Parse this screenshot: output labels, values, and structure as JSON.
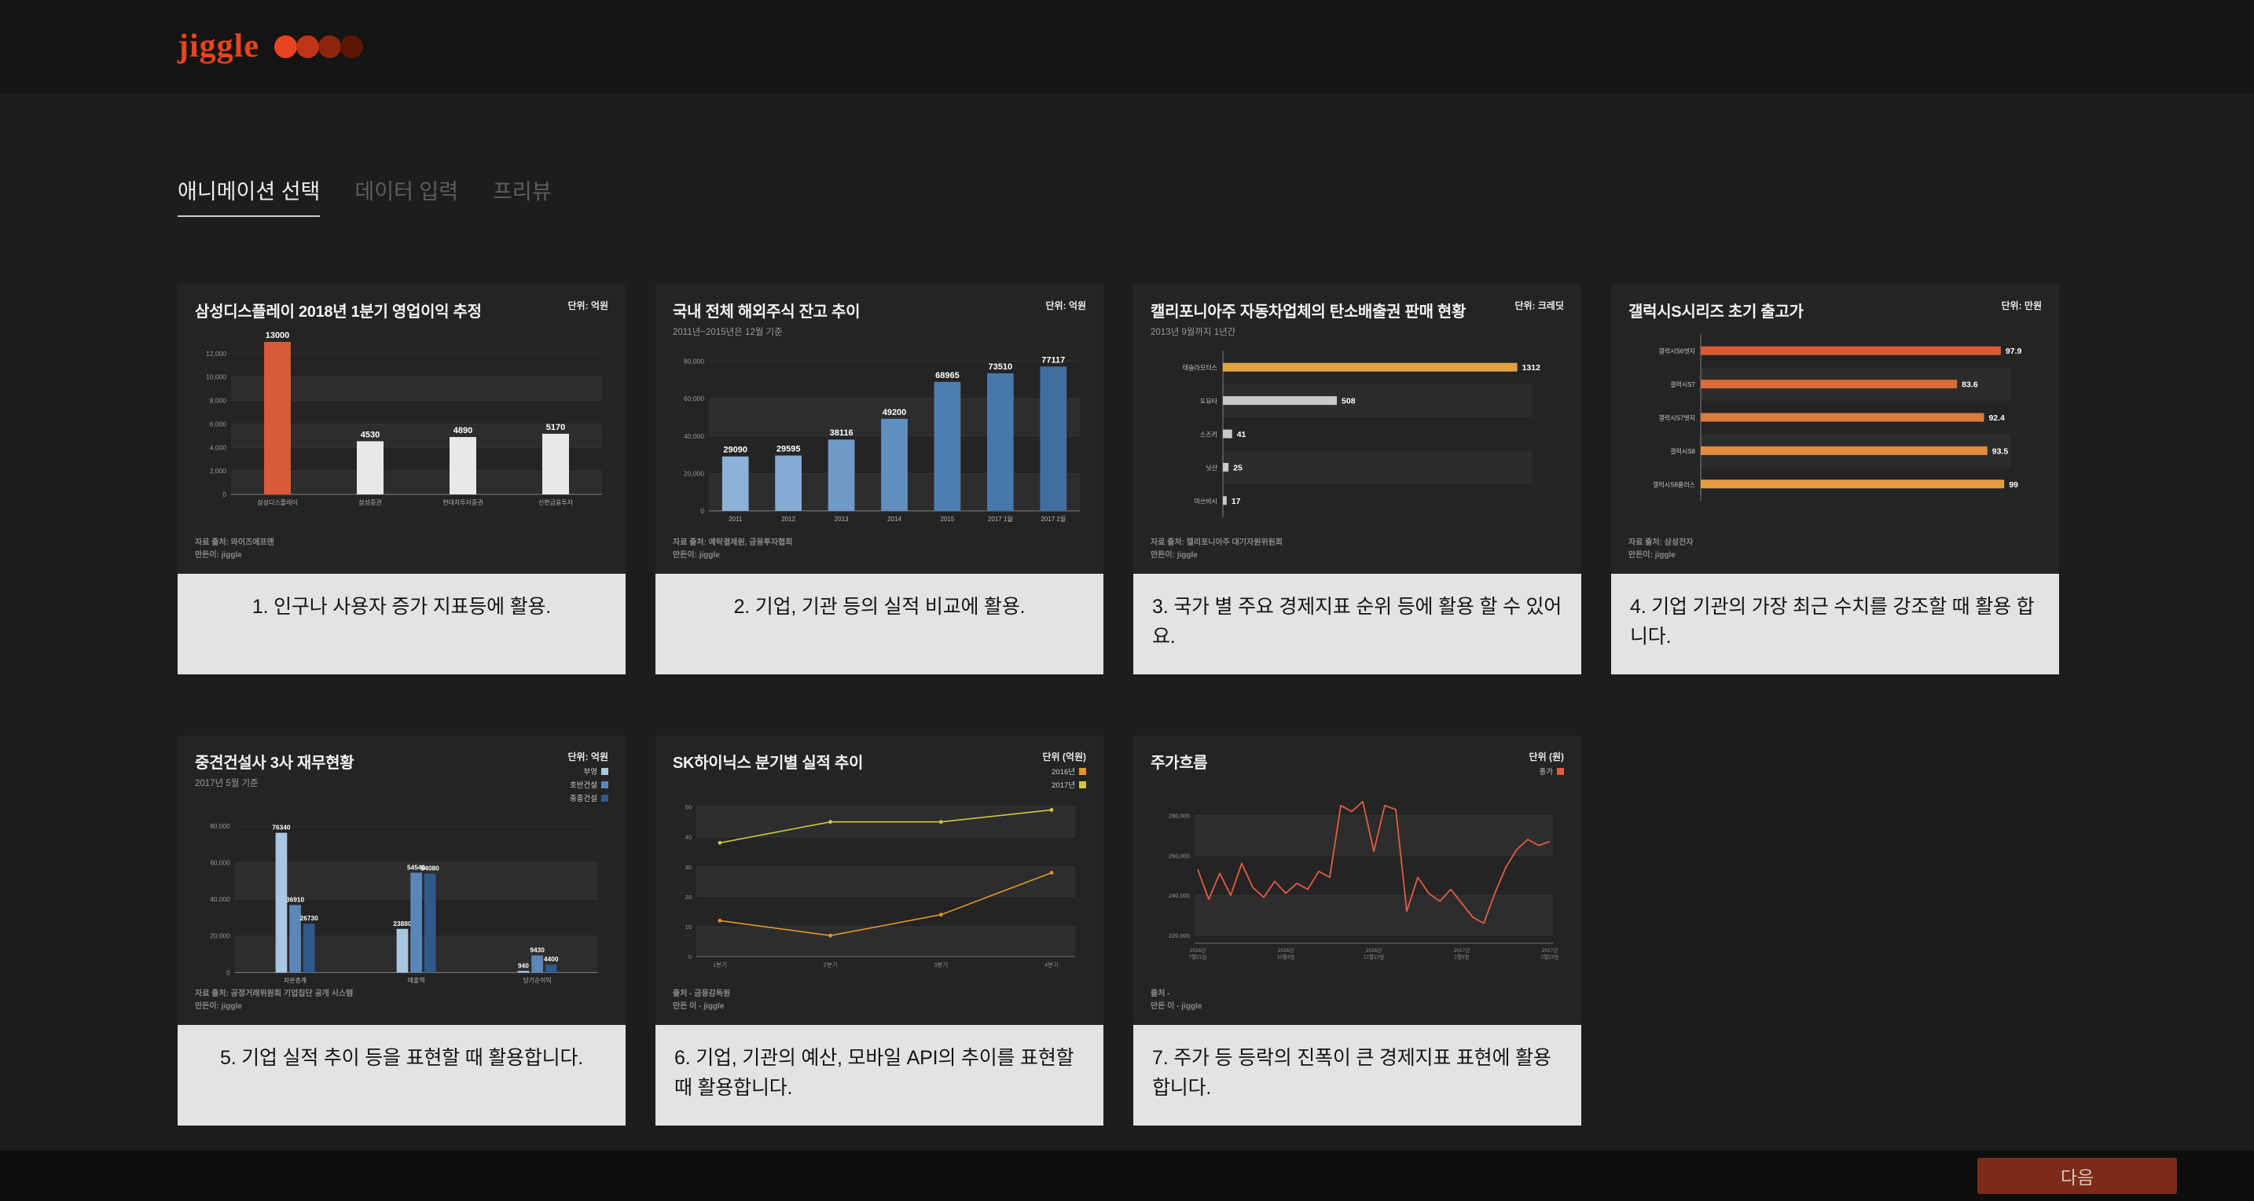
{
  "header": {
    "logo_text": "jiggle",
    "dot_colors": [
      "#e8441f",
      "#c03515",
      "#8e250d",
      "#5d1606"
    ]
  },
  "tabs": [
    {
      "label": "애니메이션 선택"
    },
    {
      "label": "데이터 입력"
    },
    {
      "label": "프리뷰"
    }
  ],
  "footer": {
    "next_label": "다음"
  },
  "cards": [
    {
      "title": "삼성디스플레이 2018년 1분기 영업이익 추정",
      "subtitle": "",
      "unit": "단위: 억원",
      "source": "자료 출처: 와이즈에프앤",
      "maker": "만든이: jiggle",
      "caption": "1. 인구나 사용자 증가 지표등에 활용.",
      "chart_data": {
        "type": "bar",
        "categories": [
          "삼성디스플레이",
          "삼성증권",
          "현대차투자증권",
          "신한금융투자"
        ],
        "values": [
          13000,
          4530,
          4890,
          5170
        ],
        "colors": [
          "#d85a36",
          "#e8e8e8",
          "#e8e8e8",
          "#e8e8e8"
        ],
        "yticks": [
          0,
          2000,
          4000,
          6000,
          8000,
          10000,
          12000
        ],
        "ymax": 13400
      }
    },
    {
      "title": "국내 전체 해외주식 잔고 추이",
      "subtitle": "2011년~2015년은 12월 기준",
      "unit": "단위: 억원",
      "source": "자료 출처: 예탁결제원, 금융투자협회",
      "maker": "만든이: jiggle",
      "caption": "2. 기업, 기관 등의 실적 비교에 활용.",
      "chart_data": {
        "type": "bar",
        "categories": [
          "2011",
          "2012",
          "2013",
          "2014",
          "2015",
          "2017 1월",
          "2017 2월"
        ],
        "values": [
          29090,
          29595,
          38116,
          49200,
          68965,
          73510,
          77117
        ],
        "colors": [
          "#8cb2d8",
          "#85abd2",
          "#6f9ac8",
          "#6190bf",
          "#4d7fb2",
          "#4678ab",
          "#406f9f"
        ],
        "yticks": [
          0,
          20000,
          40000,
          60000,
          80000
        ],
        "ymax": 84000
      }
    },
    {
      "title": "캘리포니아주 자동차업체의 탄소배출권 판매 현황",
      "subtitle": "2013년 9월까지 1년간",
      "unit": "단위: 크레딧",
      "source": "자료 출처: 캘리포니아주 대기자원위원회",
      "maker": "만든이: jiggle",
      "caption": "3. 국가 별 주요 경제지표 순위 등에 활용 할 수 있어요.",
      "chart_data": {
        "type": "hbar",
        "categories": [
          "테슬라모터스",
          "도요타",
          "스즈키",
          "닛산",
          "미쓰비시"
        ],
        "values": [
          1312,
          508,
          41,
          25,
          17
        ],
        "colors": [
          "#e2a23e",
          "#c9c9c9",
          "#c9c9c9",
          "#c9c9c9",
          "#c9c9c9"
        ],
        "xmax": 1380
      }
    },
    {
      "title": "갤럭시S시리즈 초기 출고가",
      "subtitle": "",
      "unit": "단위: 만원",
      "source": "자료 출처: 삼성전자",
      "maker": "만든이: jiggle",
      "caption": "4. 기업 기관의 가장 최근 수치를 강조할 때 활용 합니다.",
      "chart_data": {
        "type": "hbar",
        "categories": [
          "갤럭시S6엣지",
          "갤럭시S7",
          "갤럭시S7엣지",
          "갤럭시S8",
          "갤럭시S8플러스"
        ],
        "values": [
          97.9,
          83.6,
          92.4,
          93.5,
          99
        ],
        "colors": [
          "#d95b36",
          "#db6b38",
          "#de7b3a",
          "#e28c3c",
          "#e69d3f"
        ],
        "xmax": 101
      }
    },
    {
      "title": "중견건설사 3사 재무현황",
      "subtitle": "2017년 5월 기준",
      "unit": "단위: 억원",
      "source": "자료 출처: 공정거래위원회 기업집단 공개 시스템",
      "maker": "만든이: jiggle",
      "caption": "5. 기업 실적 추이 등을 표현할 때 활용합니다.",
      "chart_data": {
        "type": "grouped-bar",
        "categories": [
          "자본총계",
          "매출액",
          "당기순이익"
        ],
        "series": [
          {
            "name": "부영",
            "color": "#a9c6e2",
            "values": [
              76340,
              23880,
              940
            ]
          },
          {
            "name": "호반건설",
            "color": "#5b87b8",
            "values": [
              36910,
              54540,
              9430
            ]
          },
          {
            "name": "중흥건설",
            "color": "#31598a",
            "values": [
              26730,
              54080,
              4400
            ]
          }
        ],
        "yticks": [
          0,
          20000,
          40000,
          60000,
          80000
        ],
        "ymax": 84000
      }
    },
    {
      "title": "SK하이닉스 분기별 실적 추이",
      "subtitle": "",
      "unit": "단위 (억원)",
      "source": "출처 - 금융감독원",
      "maker": "만든 이 - jiggle",
      "caption": "6. 기업, 기관의 예산, 모바일 API의 추이를 표현할 때 활용합니다.",
      "chart_data": {
        "type": "line",
        "categories": [
          "1분기",
          "2분기",
          "3분기",
          "4분기"
        ],
        "series": [
          {
            "name": "2016년",
            "color": "#e2952f",
            "values": [
              12,
              7,
              14,
              28
            ]
          },
          {
            "name": "2017년",
            "color": "#d2c63c",
            "values": [
              38,
              45,
              45,
              49
            ]
          }
        ],
        "yticks": [
          0,
          10,
          20,
          30,
          40,
          50
        ],
        "ymin": 0,
        "ymax": 52
      }
    },
    {
      "title": "주가흐름",
      "subtitle": "",
      "unit": "단위 (원)",
      "source": "출처 -",
      "maker": "만든 이 - jiggle",
      "caption": "7. 주가 등 등락의 진폭이 큰 경제지표 표현에 활용합니다.",
      "chart_data": {
        "type": "line",
        "color": "#e25c45",
        "legend_items": [
          {
            "label": "종가",
            "color": "#e25c45"
          }
        ],
        "values": [
          253000,
          238000,
          251000,
          240000,
          256000,
          244000,
          239000,
          247000,
          241000,
          246000,
          243000,
          252000,
          249000,
          285000,
          282000,
          287000,
          262000,
          285000,
          283000,
          232000,
          249000,
          241000,
          237000,
          243000,
          236000,
          229000,
          226000,
          241000,
          254000,
          263000,
          268000,
          265000,
          267000
        ],
        "xlabels": [
          "2016년 7월21일",
          "2016년 10월4일",
          "2016년 12월13일",
          "2017년 2월6일",
          "2017년 2월23일"
        ],
        "yticks": [
          220000,
          240000,
          260000,
          280000
        ],
        "ymin": 216000,
        "ymax": 294000
      }
    }
  ]
}
